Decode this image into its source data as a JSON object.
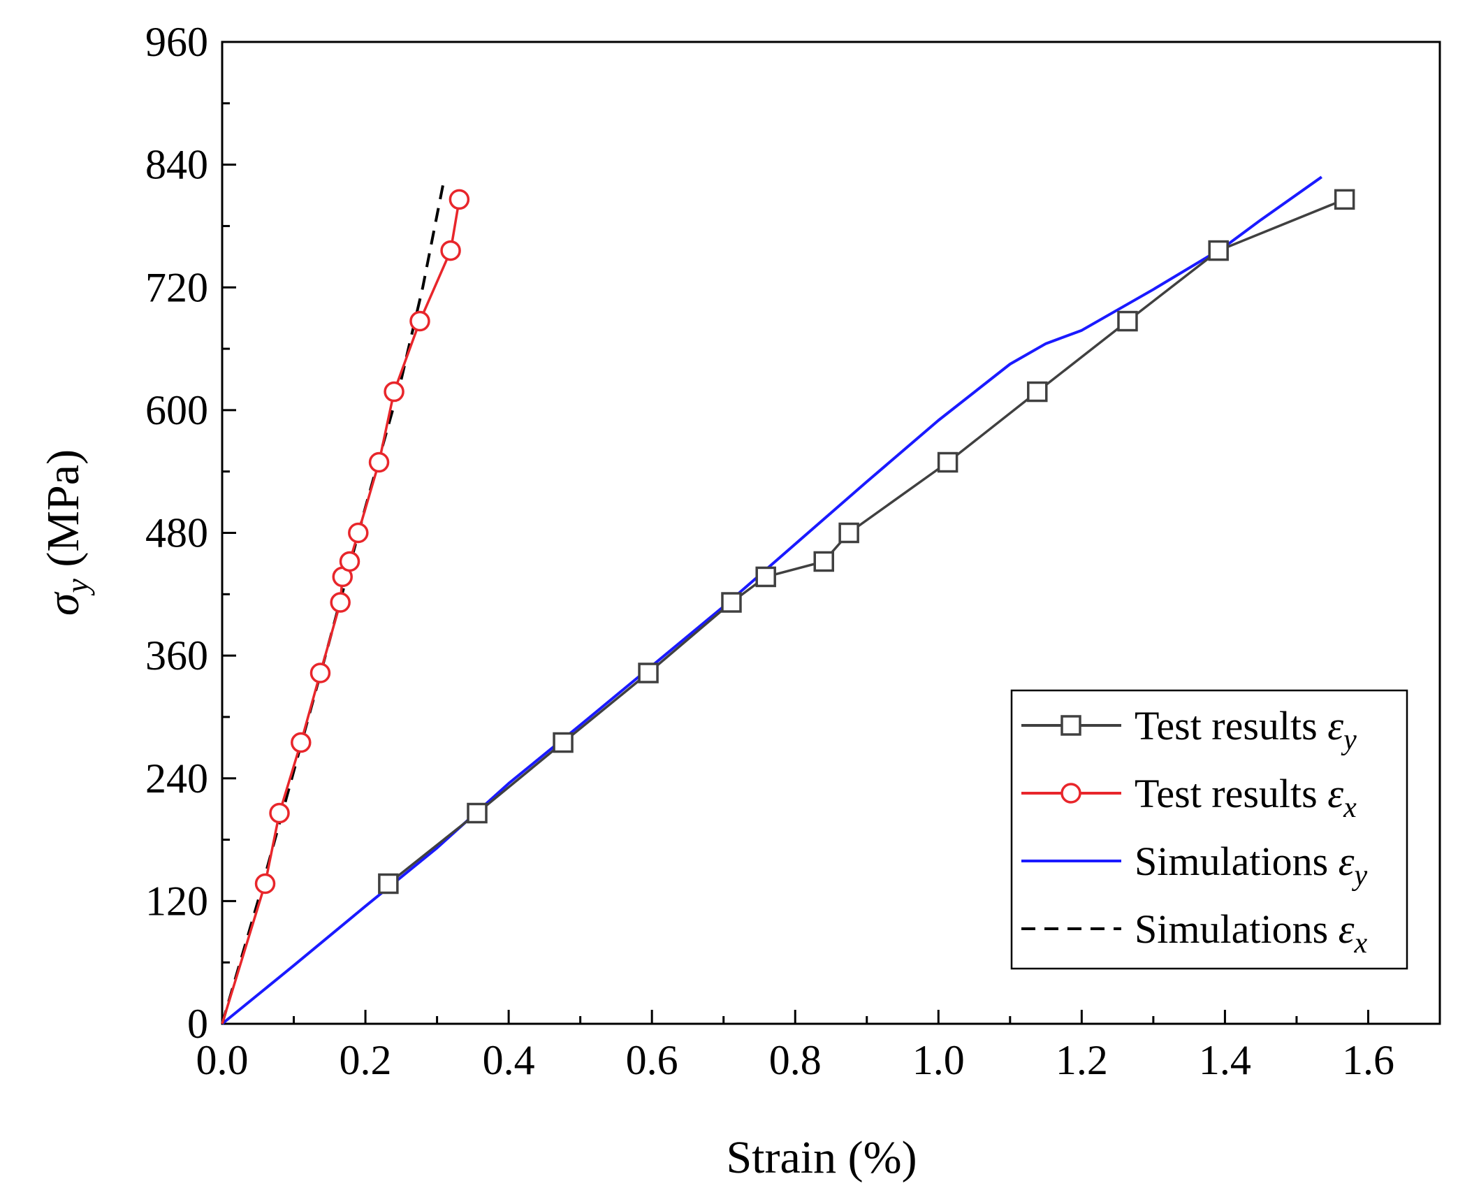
{
  "chart_data": {
    "type": "line",
    "title": "",
    "xlabel": "Strain (%)",
    "ylabel": {
      "symbol": "σ",
      "subscript": "y",
      "rest": " (MPa)"
    },
    "xlim": [
      0,
      1.7
    ],
    "ylim": [
      0,
      960
    ],
    "xticks": [
      0.0,
      0.2,
      0.4,
      0.6,
      0.8,
      1.0,
      1.2,
      1.4,
      1.6
    ],
    "xtick_labels": [
      "0.0",
      "0.2",
      "0.4",
      "0.6",
      "0.8",
      "1.0",
      "1.2",
      "1.4",
      "1.6"
    ],
    "yticks": [
      0,
      120,
      240,
      360,
      480,
      600,
      720,
      840,
      960
    ],
    "ytick_labels": [
      "0",
      "120",
      "240",
      "360",
      "480",
      "600",
      "720",
      "840",
      "960"
    ],
    "grid": false,
    "legend_position": "bottom-right",
    "series": [
      {
        "name": "Test results εy",
        "label_text": "Test results ",
        "label_symbol": "ε",
        "label_sub": "y",
        "color": "#404040",
        "marker": "square",
        "dash": "solid",
        "x": [
          0.232,
          0.356,
          0.476,
          0.595,
          0.711,
          0.759,
          0.84,
          0.875,
          1.013,
          1.138,
          1.264,
          1.391,
          1.567
        ],
        "y": [
          137,
          206,
          275,
          343,
          412,
          437,
          452,
          480,
          549,
          618,
          687,
          756,
          806
        ]
      },
      {
        "name": "Test results εx",
        "label_text": "Test results ",
        "label_symbol": "ε",
        "label_sub": "x",
        "color": "#e8262b",
        "marker": "circle",
        "dash": "solid",
        "x": [
          0.0,
          0.06,
          0.08,
          0.11,
          0.137,
          0.165,
          0.168,
          0.178,
          0.19,
          0.219,
          0.24,
          0.276,
          0.319,
          0.331
        ],
        "y": [
          0,
          137,
          206,
          275,
          343,
          412,
          437,
          452,
          480,
          549,
          618,
          687,
          756,
          806
        ]
      },
      {
        "name": "Simulations εy",
        "label_text": "Simulations ",
        "label_symbol": "ε",
        "label_sub": "y",
        "color": "#1a1aff",
        "marker": "none",
        "dash": "solid",
        "x": [
          0.0,
          0.1,
          0.2,
          0.3,
          0.4,
          0.5,
          0.6,
          0.7,
          0.8,
          0.9,
          1.0,
          1.1,
          1.15,
          1.2,
          1.3,
          1.4,
          1.45,
          1.535
        ],
        "y": [
          0,
          57,
          115,
          172,
          235,
          292,
          350,
          408,
          469,
          530,
          590,
          645,
          665,
          678,
          718,
          760,
          786,
          828
        ]
      },
      {
        "name": "Simulations εx",
        "label_text": "Simulations ",
        "label_symbol": "ε",
        "label_sub": "x",
        "color": "#000000",
        "marker": "none",
        "dash": "dashed",
        "x": [
          0.0,
          0.05,
          0.1,
          0.15,
          0.2,
          0.25,
          0.28,
          0.31
        ],
        "y": [
          0,
          120,
          247,
          375,
          505,
          630,
          720,
          826
        ]
      }
    ]
  }
}
